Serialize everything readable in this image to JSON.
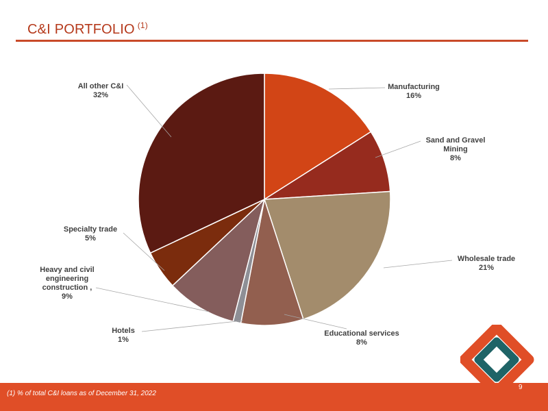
{
  "header": {
    "title": "C&I PORTFOLIO",
    "title_note": "(1)"
  },
  "chart_data": {
    "type": "pie",
    "title": "C&I PORTFOLIO (1)",
    "unit": "%",
    "slices": [
      {
        "label": [
          "Manufacturing"
        ],
        "value": 16,
        "value_label": "16%",
        "color": "#d24516"
      },
      {
        "label": [
          "Sand and Gravel",
          "Mining"
        ],
        "value": 8,
        "value_label": "8%",
        "color": "#962b1e"
      },
      {
        "label": [
          "Wholesale trade"
        ],
        "value": 21,
        "value_label": "21%",
        "color": "#a38c6c"
      },
      {
        "label": [
          "Educational services"
        ],
        "value": 8,
        "value_label": "8%",
        "color": "#925f4f"
      },
      {
        "label": [
          "Hotels"
        ],
        "value": 1,
        "value_label": "1%",
        "color": "#8e8f96"
      },
      {
        "label": [
          "Heavy and civil",
          "engineering",
          "construction ,"
        ],
        "value": 9,
        "value_label": "9%",
        "color": "#845d5c"
      },
      {
        "label": [
          "Specialty trade"
        ],
        "value": 5,
        "value_label": "5%",
        "color": "#7b2c0d"
      },
      {
        "label": [
          "All other C&I"
        ],
        "value": 32,
        "value_label": "32%",
        "color": "#5b1a12"
      }
    ]
  },
  "footer": {
    "footnote": "(1)  % of total C&I loans as of December 31, 2022",
    "page_number": "9"
  },
  "logo": {
    "outer_color": "#e04e27",
    "inner_color": "#1f6467"
  }
}
